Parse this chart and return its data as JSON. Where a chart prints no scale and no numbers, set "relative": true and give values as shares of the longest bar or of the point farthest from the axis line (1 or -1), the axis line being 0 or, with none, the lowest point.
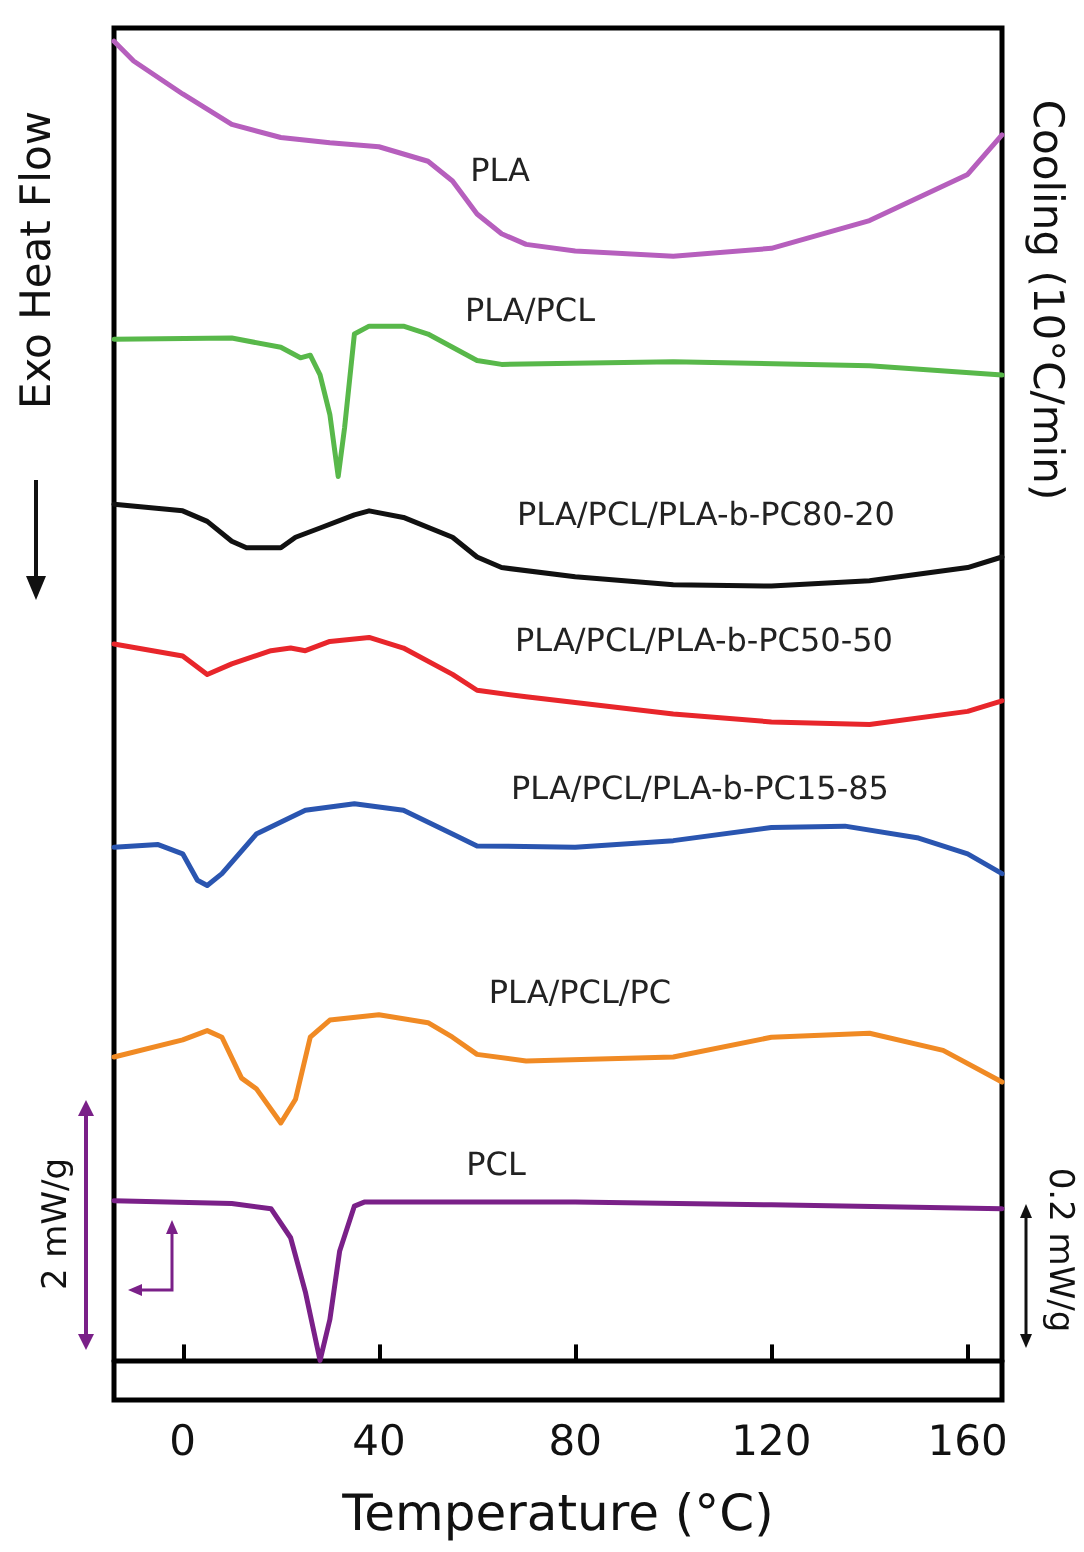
{
  "chart_data": {
    "type": "line",
    "relative": true,
    "xlabel": "Temperature (°C)",
    "ylabel": "Exo Heat Flow",
    "y2label": "Cooling (10°C/min)",
    "xlim": [
      -14,
      167
    ],
    "xticks": [
      0,
      40,
      80,
      120,
      160
    ],
    "grid": false,
    "marker": "none",
    "line_style": "solid",
    "series": [
      {
        "name": "PLA",
        "color": "#b65fbd",
        "x": [
          -14,
          -10,
          0,
          10,
          20,
          30,
          40,
          50,
          55,
          60,
          65,
          70,
          80,
          100,
          120,
          140,
          160,
          167
        ],
        "values": [
          1.0,
          0.985,
          0.96,
          0.937,
          0.927,
          0.923,
          0.92,
          0.909,
          0.894,
          0.869,
          0.854,
          0.846,
          0.841,
          0.837,
          0.843,
          0.864,
          0.899,
          0.929
        ]
      },
      {
        "name": "PLA/PCL",
        "color": "#58b84a",
        "x": [
          -14,
          10,
          20,
          24,
          26,
          28,
          30,
          31.7,
          33,
          35,
          38,
          45,
          50,
          55,
          60,
          65,
          100,
          140,
          167
        ],
        "values": [
          0.774,
          0.775,
          0.768,
          0.76,
          0.762,
          0.747,
          0.717,
          0.67,
          0.707,
          0.778,
          0.784,
          0.784,
          0.778,
          0.768,
          0.758,
          0.755,
          0.757,
          0.754,
          0.747
        ]
      },
      {
        "name": "PLA/PCL/PLA-b-PC80-20",
        "color": "#111111",
        "x": [
          -14,
          0,
          5,
          10,
          13,
          20,
          23,
          28,
          35,
          38,
          45,
          55,
          60,
          65,
          80,
          100,
          120,
          140,
          160,
          167
        ],
        "values": [
          0.649,
          0.644,
          0.636,
          0.621,
          0.616,
          0.616,
          0.624,
          0.631,
          0.641,
          0.644,
          0.639,
          0.624,
          0.609,
          0.601,
          0.594,
          0.588,
          0.587,
          0.591,
          0.601,
          0.609
        ]
      },
      {
        "name": "PLA/PCL/PLA-b-PC50-50",
        "color": "#e8262b",
        "x": [
          -14,
          0,
          5,
          10,
          18,
          22,
          25,
          30,
          38,
          45,
          55,
          60,
          70,
          100,
          120,
          140,
          160,
          167
        ],
        "values": [
          0.543,
          0.534,
          0.52,
          0.528,
          0.538,
          0.54,
          0.538,
          0.545,
          0.548,
          0.54,
          0.52,
          0.508,
          0.503,
          0.49,
          0.484,
          0.482,
          0.492,
          0.5
        ]
      },
      {
        "name": "PLA/PCL/PLA-b-PC15-85",
        "color": "#2a55b0",
        "x": [
          -14,
          -5,
          0,
          3,
          5,
          8,
          15,
          25,
          35,
          45,
          55,
          60,
          80,
          100,
          120,
          135,
          150,
          160,
          167
        ],
        "values": [
          0.389,
          0.391,
          0.384,
          0.364,
          0.36,
          0.369,
          0.399,
          0.417,
          0.422,
          0.417,
          0.399,
          0.39,
          0.389,
          0.394,
          0.404,
          0.405,
          0.396,
          0.384,
          0.369
        ]
      },
      {
        "name": "PLA/PCL/PC",
        "color": "#f08a24",
        "x": [
          -14,
          0,
          5,
          8,
          12,
          15,
          20,
          23,
          26,
          30,
          40,
          50,
          55,
          60,
          70,
          100,
          120,
          140,
          155,
          167
        ],
        "values": [
          0.23,
          0.243,
          0.25,
          0.245,
          0.214,
          0.206,
          0.18,
          0.198,
          0.245,
          0.258,
          0.262,
          0.256,
          0.245,
          0.232,
          0.227,
          0.23,
          0.245,
          0.248,
          0.235,
          0.211
        ]
      },
      {
        "name": "PCL",
        "color": "#7a2088",
        "x": [
          -14,
          10,
          18,
          22,
          25,
          28,
          30,
          32,
          35,
          37,
          80,
          120,
          167
        ],
        "values": [
          0.121,
          0.119,
          0.115,
          0.093,
          0.052,
          0.0,
          0.031,
          0.083,
          0.117,
          0.12,
          0.12,
          0.118,
          0.115
        ]
      }
    ],
    "annotations": [
      "2 mW/g",
      "0.2 mW/g"
    ]
  }
}
